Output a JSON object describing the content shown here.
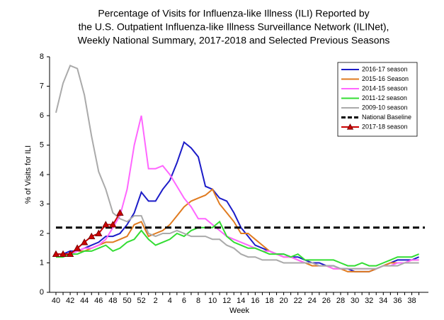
{
  "chart_data": {
    "type": "line",
    "title_lines": [
      "Percentage of Visits for Influenza-like Illness (ILI) Reported by",
      "the U.S. Outpatient Influenza-like Illness Surveillance Network (ILINet),",
      "Weekly National Summary, 2017-2018 and Selected Previous Seasons"
    ],
    "x_label": "Week",
    "y_label": "% of Visits for ILI",
    "categories": [
      40,
      null,
      42,
      null,
      44,
      null,
      46,
      null,
      48,
      null,
      50,
      null,
      52,
      null,
      2,
      null,
      4,
      null,
      6,
      null,
      8,
      null,
      10,
      null,
      12,
      null,
      14,
      null,
      16,
      null,
      18,
      null,
      20,
      null,
      22,
      null,
      24,
      null,
      26,
      null,
      28,
      null,
      30,
      null,
      32,
      null,
      34,
      null,
      36,
      null,
      38,
      null
    ],
    "ylim": [
      0,
      8
    ],
    "yticks": [
      0,
      1,
      2,
      3,
      4,
      5,
      6,
      7,
      8
    ],
    "series": [
      {
        "name": "2016-17 season",
        "color": "#1c1cc8",
        "values": [
          1.3,
          1.3,
          1.4,
          1.4,
          1.5,
          1.6,
          1.7,
          1.9,
          1.9,
          2.0,
          2.3,
          2.7,
          3.4,
          3.1,
          3.1,
          3.5,
          3.8,
          4.4,
          5.1,
          4.9,
          4.6,
          3.6,
          3.5,
          3.2,
          3.1,
          2.7,
          2.2,
          1.9,
          1.6,
          1.5,
          1.4,
          1.3,
          1.3,
          1.2,
          1.2,
          1.1,
          1.0,
          1.0,
          0.9,
          0.9,
          0.8,
          0.8,
          0.7,
          0.7,
          0.7,
          0.8,
          0.9,
          1.0,
          1.1,
          1.1,
          1.1,
          1.2
        ]
      },
      {
        "name": "2015-16 Season",
        "color": "#e07b20",
        "values": [
          1.3,
          1.3,
          1.3,
          1.4,
          1.4,
          1.5,
          1.6,
          1.7,
          1.7,
          1.8,
          1.9,
          2.3,
          2.4,
          1.9,
          2.0,
          2.1,
          2.3,
          2.6,
          2.9,
          3.1,
          3.2,
          3.3,
          3.5,
          3.0,
          2.7,
          2.4,
          2.0,
          2.0,
          1.8,
          1.6,
          1.4,
          1.3,
          1.2,
          1.2,
          1.1,
          1.0,
          0.9,
          0.9,
          0.9,
          0.8,
          0.8,
          0.7,
          0.7,
          0.7,
          0.7,
          0.8,
          0.9,
          1.0,
          1.0,
          1.0,
          1.1,
          1.1
        ]
      },
      {
        "name": "2014-15 season",
        "color": "#ff66ff",
        "values": [
          1.3,
          1.3,
          1.3,
          1.4,
          1.5,
          1.5,
          1.6,
          1.8,
          2.2,
          2.6,
          3.5,
          5.0,
          6.0,
          4.2,
          4.2,
          4.3,
          4.0,
          3.6,
          3.2,
          2.9,
          2.5,
          2.5,
          2.3,
          2.1,
          1.9,
          1.8,
          1.7,
          1.6,
          1.5,
          1.4,
          1.4,
          1.3,
          1.2,
          1.2,
          1.1,
          1.0,
          1.0,
          0.9,
          0.9,
          0.8,
          0.8,
          0.8,
          0.8,
          0.8,
          0.8,
          0.8,
          0.9,
          0.9,
          1.0,
          1.0,
          1.1,
          1.1
        ]
      },
      {
        "name": "2011-12 season",
        "color": "#33dd33",
        "values": [
          1.2,
          1.2,
          1.3,
          1.3,
          1.4,
          1.4,
          1.5,
          1.6,
          1.4,
          1.5,
          1.7,
          1.8,
          2.1,
          1.8,
          1.6,
          1.7,
          1.8,
          2.0,
          1.9,
          2.1,
          2.2,
          2.2,
          2.2,
          2.4,
          1.9,
          1.7,
          1.6,
          1.5,
          1.5,
          1.4,
          1.3,
          1.3,
          1.3,
          1.2,
          1.3,
          1.1,
          1.1,
          1.1,
          1.1,
          1.1,
          1.0,
          0.9,
          0.9,
          1.0,
          0.9,
          0.9,
          1.0,
          1.1,
          1.2,
          1.2,
          1.2,
          1.3
        ]
      },
      {
        "name": "2009-10 season",
        "color": "#aaaaaa",
        "values": [
          6.1,
          7.1,
          7.7,
          7.6,
          6.7,
          5.3,
          4.1,
          3.5,
          2.7,
          2.5,
          2.4,
          2.6,
          2.6,
          2.0,
          1.9,
          2.0,
          2.0,
          2.1,
          2.0,
          1.9,
          1.9,
          1.9,
          1.8,
          1.8,
          1.6,
          1.5,
          1.3,
          1.2,
          1.2,
          1.1,
          1.1,
          1.1,
          1.0,
          1.0,
          1.0,
          1.0,
          1.0,
          0.9,
          0.9,
          0.9,
          0.8,
          0.8,
          0.8,
          0.8,
          0.8,
          0.8,
          0.9,
          0.9,
          0.9,
          1.0,
          1.0,
          1.0
        ]
      },
      {
        "name": "National Baseline",
        "color": "#000000",
        "dashed": true,
        "value": 2.2
      },
      {
        "name": "2017-18 season",
        "color": "#cc0000",
        "marker": "triangle",
        "values": [
          1.3,
          1.3,
          1.3,
          1.5,
          1.7,
          1.9,
          2.0,
          2.3,
          2.3,
          2.7,
          null,
          null,
          null,
          null,
          null,
          null,
          null,
          null,
          null,
          null,
          null,
          null,
          null,
          null,
          null,
          null,
          null,
          null,
          null,
          null,
          null,
          null,
          null,
          null,
          null,
          null,
          null,
          null,
          null,
          null,
          null,
          null,
          null,
          null,
          null,
          null,
          null,
          null,
          null,
          null,
          null,
          null
        ]
      }
    ]
  }
}
